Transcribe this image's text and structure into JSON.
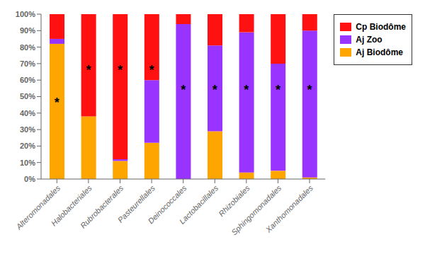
{
  "chart_data": {
    "type": "bar",
    "stacked": true,
    "categories": [
      "Alteromonadales",
      "Halobacteriales",
      "Rubrobacterales",
      "Pasteurellales",
      "Deinococcales",
      "Lactobacillales",
      "Rhizobiales",
      "Sphingomonadales",
      "Xanthomonadales"
    ],
    "series": [
      {
        "name": "Aj Biodôme",
        "color": "#FFA500",
        "values": [
          82,
          38,
          11,
          22,
          0,
          29,
          4,
          5,
          1
        ]
      },
      {
        "name": "Aj Zoo",
        "color": "#9933FF",
        "values": [
          3,
          0,
          1,
          38,
          94,
          52,
          85,
          65,
          89
        ]
      },
      {
        "name": "Cp Biodôme",
        "color": "#FF1111",
        "values": [
          15,
          62,
          88,
          40,
          6,
          19,
          11,
          30,
          10
        ]
      }
    ],
    "ylim": [
      0,
      100
    ],
    "yticks": [
      {
        "value": 0,
        "label": "0%"
      },
      {
        "value": 10,
        "label": "10%"
      },
      {
        "value": 20,
        "label": "20%"
      },
      {
        "value": 30,
        "label": "30%"
      },
      {
        "value": 40,
        "label": "40%"
      },
      {
        "value": 50,
        "label": "50%"
      },
      {
        "value": 60,
        "label": "60%"
      },
      {
        "value": 70,
        "label": "70%"
      },
      {
        "value": 80,
        "label": "80%"
      },
      {
        "value": 90,
        "label": "90%"
      },
      {
        "value": 100,
        "label": "100%"
      }
    ],
    "grid": false,
    "legend": "upper right",
    "annotations": [
      {
        "category": "Alteromonadales",
        "y": 46,
        "text": "*"
      },
      {
        "category": "Halobacteriales",
        "y": 66,
        "text": "*"
      },
      {
        "category": "Rubrobacterales",
        "y": 66,
        "text": "*"
      },
      {
        "category": "Pasteurellales",
        "y": 66,
        "text": "*"
      },
      {
        "category": "Deinococcales",
        "y": 54,
        "text": "*"
      },
      {
        "category": "Lactobacillales",
        "y": 54,
        "text": "*"
      },
      {
        "category": "Rhizobiales",
        "y": 54,
        "text": "*"
      },
      {
        "category": "Sphingomonadales",
        "y": 54,
        "text": "*"
      },
      {
        "category": "Xanthomonadales",
        "y": 54,
        "text": "*"
      }
    ]
  }
}
